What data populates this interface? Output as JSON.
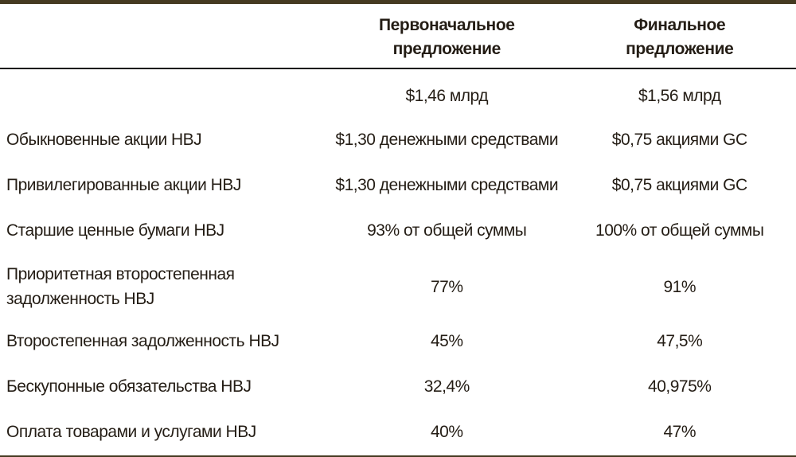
{
  "colors": {
    "outer_rule": "#453a21",
    "header_rule": "#15120e",
    "text": "#241d15",
    "background": "#ffffff"
  },
  "table": {
    "header": {
      "label_col": "",
      "initial_offer": "Первоначальное предложение",
      "final_offer": "Финальное предложение"
    },
    "rows": [
      {
        "label": "",
        "initial": "$1,46 млрд",
        "final": "$1,56 млрд"
      },
      {
        "label": "Обыкновенные акции HBJ",
        "initial": "$1,30 денежными средствами",
        "final": "$0,75 акциями GC"
      },
      {
        "label": "Привилегированные акции HBJ",
        "initial": "$1,30 денежными средствами",
        "final": "$0,75 акциями GC"
      },
      {
        "label": "Старшие ценные бумаги HBJ",
        "initial": "93% от общей суммы",
        "final": "100% от общей суммы"
      },
      {
        "label": "Приоритетная второстепенная задолженность HBJ",
        "initial": "77%",
        "final": "91%"
      },
      {
        "label": "Второстепенная задолженность HBJ",
        "initial": "45%",
        "final": "47,5%"
      },
      {
        "label": "Бескупонные обязательства HBJ",
        "initial": "32,4%",
        "final": "40,975%"
      },
      {
        "label": "Оплата товарами и услугами HBJ",
        "initial": "40%",
        "final": "47%"
      }
    ]
  }
}
